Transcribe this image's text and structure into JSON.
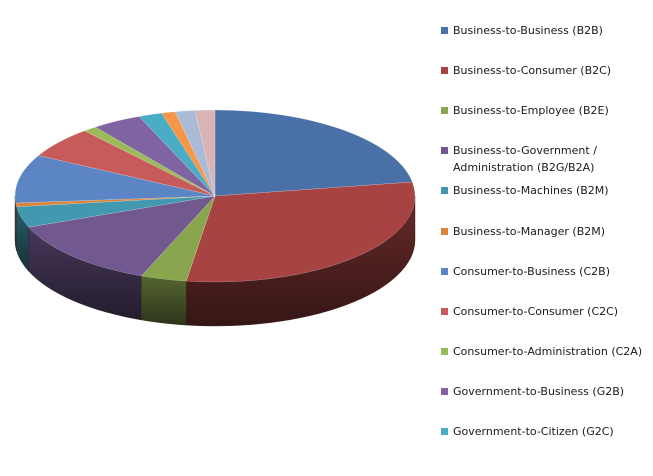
{
  "chart_data": {
    "type": "pie",
    "title": "",
    "categories": [
      "Business-to-Business (B2B)",
      "Business-to-Consumer (B2C)",
      "Business-to-Employee (B2E)",
      "Business-to-Government /\nAdministration  (B2G/B2A)",
      "Business-to-Machines (B2M)",
      "Business-to-Manager (B2M)",
      "Consumer-to-Business (C2B)",
      "Consumer-to-Consumer (C2C)",
      "Consumer-to-Administration  (C2A)",
      "Government-to-Business (G2B)",
      "Government-to-Citizen (G2C)",
      "",
      "",
      ""
    ],
    "values": [
      22.4,
      29.9,
      3.7,
      13.1,
      3.9,
      0.7,
      9.1,
      5.9,
      1.1,
      4.0,
      1.9,
      1.1,
      1.6,
      1.6
    ],
    "colors": [
      "#4a70a8",
      "#a74443",
      "#89a54e",
      "#71588f",
      "#4198af",
      "#db843d",
      "#5b85c4",
      "#c65b59",
      "#9bbb59",
      "#8064a2",
      "#4bacc6",
      "#f79646",
      "#aabad7",
      "#d8b4b4"
    ],
    "legend_position": "right",
    "style": "3d-pie"
  }
}
